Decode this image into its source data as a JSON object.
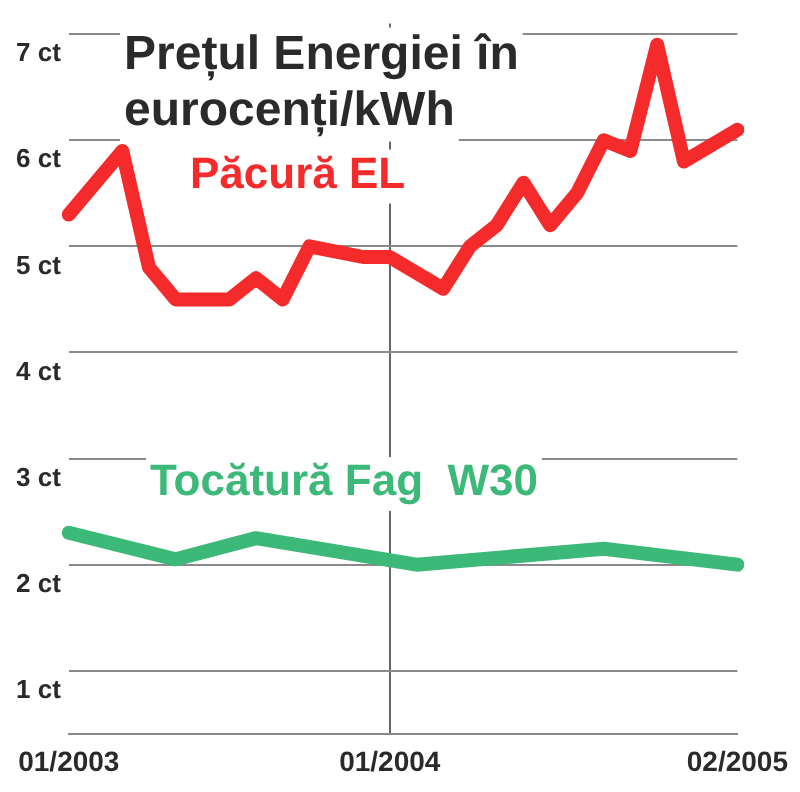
{
  "chart_data": {
    "type": "line",
    "title": "Prețul Energiei în eurocenți/kWh",
    "categories": [
      "01/2003",
      null,
      null,
      null,
      null,
      null,
      null,
      null,
      null,
      null,
      null,
      null,
      "01/2004",
      null,
      null,
      null,
      null,
      null,
      null,
      null,
      null,
      null,
      null,
      null,
      null,
      "02/2005"
    ],
    "ylim": [
      0.4,
      7.1
    ],
    "yticks": [
      {
        "value": 1,
        "label": "1 ct"
      },
      {
        "value": 2,
        "label": "2 ct"
      },
      {
        "value": 3,
        "label": "3 ct"
      },
      {
        "value": 4,
        "label": "4 ct"
      },
      {
        "value": 5,
        "label": "5 ct"
      },
      {
        "value": 6,
        "label": "6 ct"
      },
      {
        "value": 7,
        "label": "7 ct"
      }
    ],
    "grid": true,
    "legend": false,
    "marker": "none",
    "line_style": "solid",
    "series": [
      {
        "name": "Păcură EL",
        "color": "#f52a2a",
        "values": [
          5.3,
          null,
          5.9,
          4.8,
          4.5,
          null,
          4.5,
          4.7,
          4.5,
          5.0,
          null,
          4.9,
          4.9,
          null,
          4.6,
          5.0,
          5.2,
          5.6,
          5.2,
          5.5,
          6.0,
          5.9,
          6.9,
          5.8,
          null,
          6.1
        ]
      },
      {
        "name": "Tocătură Fag  W30",
        "color": "#3cb878",
        "values": [
          2.3,
          null,
          null,
          null,
          2.05,
          null,
          null,
          2.25,
          null,
          null,
          null,
          null,
          null,
          2.0,
          null,
          null,
          null,
          null,
          null,
          null,
          2.15,
          null,
          null,
          null,
          null,
          2.0
        ]
      }
    ]
  }
}
